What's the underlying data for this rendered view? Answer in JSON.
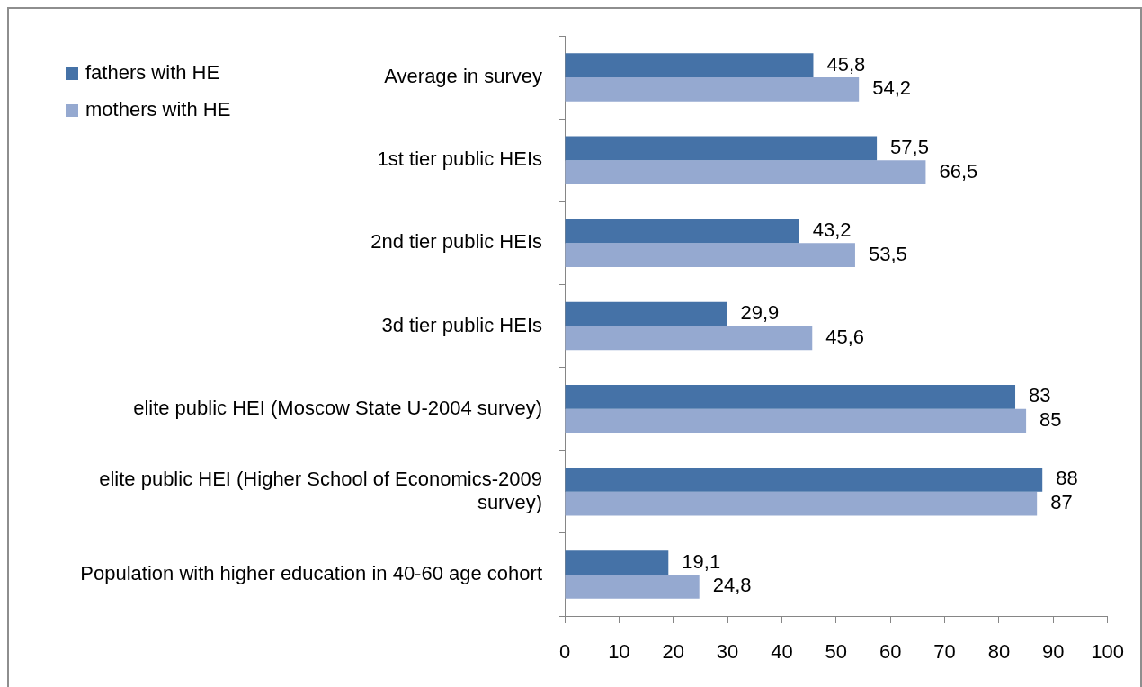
{
  "chart_data": {
    "type": "bar",
    "orientation": "horizontal",
    "categories": [
      "Average in survey",
      "1st tier public HEIs",
      "2nd tier public HEIs",
      "3d tier public HEIs",
      "elite public HEI (Moscow State U-2004 survey)",
      "elite public HEI (Higher School of Economics-2009 survey)",
      "Population with higher education in 40-60 age cohort"
    ],
    "series": [
      {
        "name": "fathers with HE",
        "color": "#4572a7",
        "values": [
          45.8,
          57.5,
          43.2,
          29.9,
          83,
          88,
          19.1
        ],
        "value_labels": [
          "45,8",
          "57,5",
          "43,2",
          "29,9",
          "83",
          "88",
          "19,1"
        ]
      },
      {
        "name": "mothers with HE",
        "color": "#95a9d0",
        "values": [
          54.2,
          66.5,
          53.5,
          45.6,
          85,
          87,
          24.8
        ],
        "value_labels": [
          "54,2",
          "66,5",
          "53,5",
          "45,6",
          "85",
          "87",
          "24,8"
        ]
      }
    ],
    "xlim": [
      0,
      100
    ],
    "xticks": [
      0,
      10,
      20,
      30,
      40,
      50,
      60,
      70,
      80,
      90,
      100
    ],
    "grid": false,
    "legend": "top left"
  }
}
